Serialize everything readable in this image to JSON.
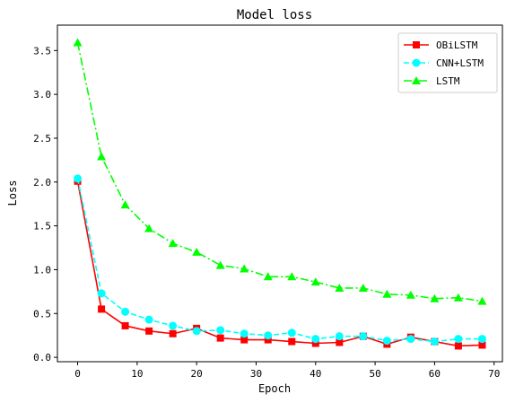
{
  "chart_data": {
    "type": "line",
    "title": "Model loss",
    "xlabel": "Epoch",
    "ylabel": "Loss",
    "xlim": [
      -3.4,
      71.4
    ],
    "ylim": [
      -0.05,
      3.79
    ],
    "xticks": [
      0,
      10,
      20,
      30,
      40,
      50,
      60,
      70
    ],
    "yticks": [
      0.0,
      0.5,
      1.0,
      1.5,
      2.0,
      2.5,
      3.0,
      3.5
    ],
    "ytick_labels": [
      "0.0",
      "0.5",
      "1.0",
      "1.5",
      "2.0",
      "2.5",
      "3.0",
      "3.5"
    ],
    "grid": false,
    "legend_position": "top-right",
    "x": [
      0,
      4,
      8,
      12,
      16,
      20,
      24,
      28,
      32,
      36,
      40,
      44,
      48,
      52,
      56,
      60,
      64,
      68
    ],
    "series": [
      {
        "name": "OBiLSTM",
        "color": "#ff0000",
        "linestyle": "solid",
        "marker": "square",
        "values": [
          2.01,
          0.55,
          0.36,
          0.3,
          0.27,
          0.33,
          0.22,
          0.2,
          0.2,
          0.18,
          0.16,
          0.17,
          0.24,
          0.15,
          0.23,
          0.18,
          0.13,
          0.14
        ]
      },
      {
        "name": "CNN+LSTM",
        "color": "#00ffff",
        "linestyle": "dashed",
        "marker": "circle",
        "values": [
          2.04,
          0.73,
          0.52,
          0.43,
          0.36,
          0.3,
          0.31,
          0.27,
          0.25,
          0.28,
          0.21,
          0.24,
          0.24,
          0.19,
          0.21,
          0.18,
          0.21,
          0.21
        ]
      },
      {
        "name": "LSTM",
        "color": "#00ff00",
        "linestyle": "dashdot",
        "marker": "triangle",
        "values": [
          3.59,
          2.29,
          1.74,
          1.47,
          1.3,
          1.2,
          1.05,
          1.01,
          0.92,
          0.92,
          0.86,
          0.79,
          0.79,
          0.72,
          0.71,
          0.67,
          0.68,
          0.64
        ]
      }
    ]
  }
}
